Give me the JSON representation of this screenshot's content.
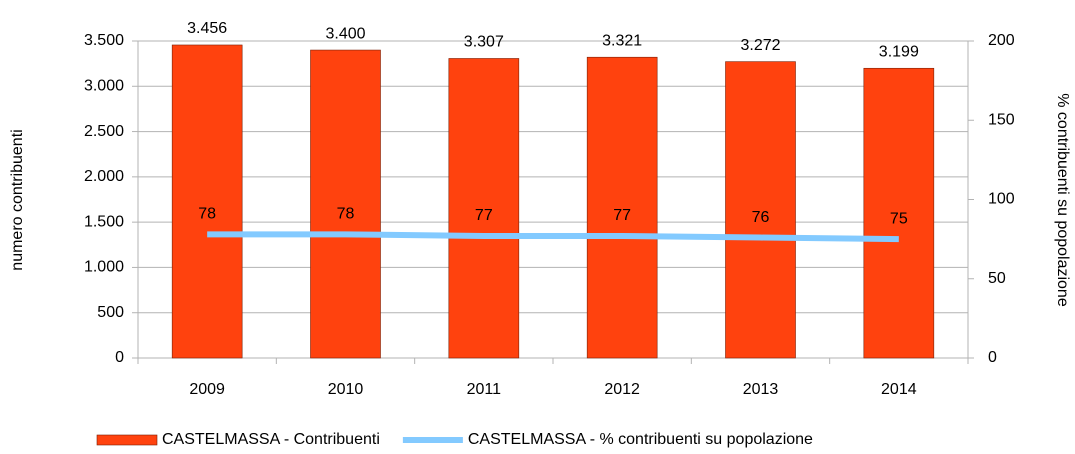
{
  "chart_data": {
    "type": "bar",
    "categories": [
      "2009",
      "2010",
      "2011",
      "2012",
      "2013",
      "2014"
    ],
    "ylabel": "numero contribuenti",
    "y2label": "% contribuenti su popolazione",
    "ylim": [
      0,
      3500
    ],
    "yticks": [
      0,
      500,
      {
        "value": 1000,
        "label": "1.000"
      },
      {
        "value": 1500,
        "label": "1.500"
      },
      {
        "value": 2000,
        "label": "2.000"
      },
      {
        "value": 2500,
        "label": "2.500"
      },
      {
        "value": 3000,
        "label": "3.000"
      },
      {
        "value": 3500,
        "label": "3.500"
      }
    ],
    "y2lim": [
      0,
      200
    ],
    "y2ticks": [
      0,
      50,
      100,
      150,
      200
    ],
    "grid": true,
    "legend": "bottom",
    "series": [
      {
        "name": "CASTELMASSA - Contribuenti",
        "type": "bar",
        "color": "#ff420e",
        "values": [
          3456,
          3400,
          3307,
          3321,
          3272,
          3199
        ],
        "value_labels": [
          "3.456",
          "3.400",
          "3.307",
          "3.321",
          "3.272",
          "3.199"
        ]
      },
      {
        "name": "CASTELMASSA - % contribuenti su popolazione",
        "type": "line",
        "axis": "y2",
        "color": "#83caff",
        "values": [
          78,
          78,
          77,
          77,
          76,
          75
        ]
      }
    ]
  }
}
